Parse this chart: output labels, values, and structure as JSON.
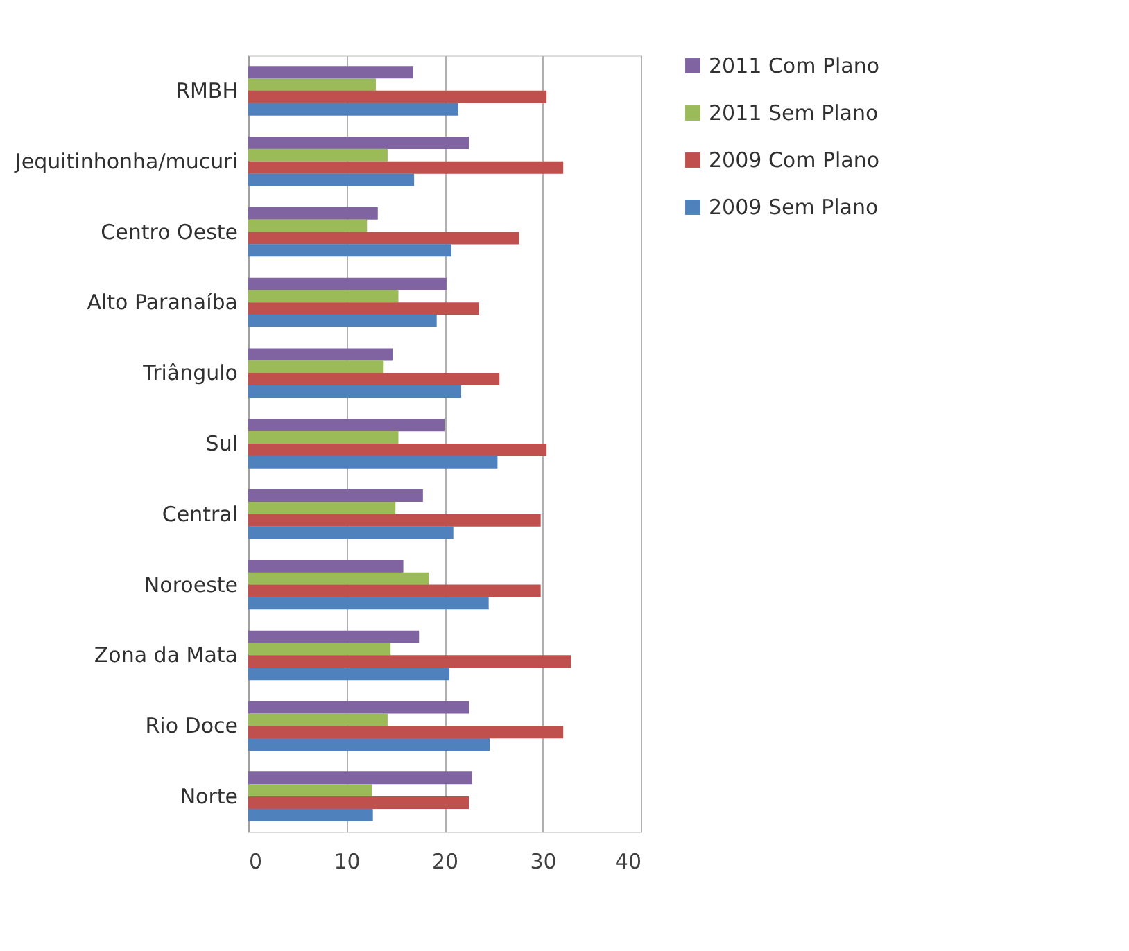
{
  "chart_data": {
    "type": "bar",
    "orientation": "horizontal",
    "categories": [
      "RMBH",
      "Jequitinhonha/mucuri",
      "Centro Oeste",
      "Alto Paranaíba",
      "Triângulo",
      "Sul",
      "Central",
      "Noroeste",
      "Zona da Mata",
      "Rio Doce",
      "Norte"
    ],
    "series": [
      {
        "name": "2011 Com Plano",
        "color": "#8064a2",
        "values": [
          16.8,
          22.5,
          13.2,
          20.2,
          14.7,
          20.0,
          17.8,
          15.8,
          17.4,
          22.5,
          22.8
        ]
      },
      {
        "name": "2011 Sem Plano",
        "color": "#9bbb59",
        "values": [
          13.0,
          14.2,
          12.1,
          15.3,
          13.8,
          15.3,
          15.0,
          18.4,
          14.5,
          14.2,
          12.6
        ]
      },
      {
        "name": "2009 Com Plano",
        "color": "#c0504d",
        "values": [
          30.4,
          32.1,
          27.6,
          23.5,
          25.6,
          30.4,
          29.8,
          29.8,
          32.9,
          32.1,
          22.5
        ]
      },
      {
        "name": "2009 Sem Plano",
        "color": "#4f81bd",
        "values": [
          21.4,
          16.9,
          20.7,
          19.2,
          21.7,
          25.4,
          20.9,
          24.5,
          20.5,
          24.6,
          12.7
        ]
      }
    ],
    "xlim": [
      0,
      40
    ],
    "xticks": [
      0,
      10,
      20,
      30,
      40
    ],
    "grid": "x",
    "legend": "right"
  }
}
